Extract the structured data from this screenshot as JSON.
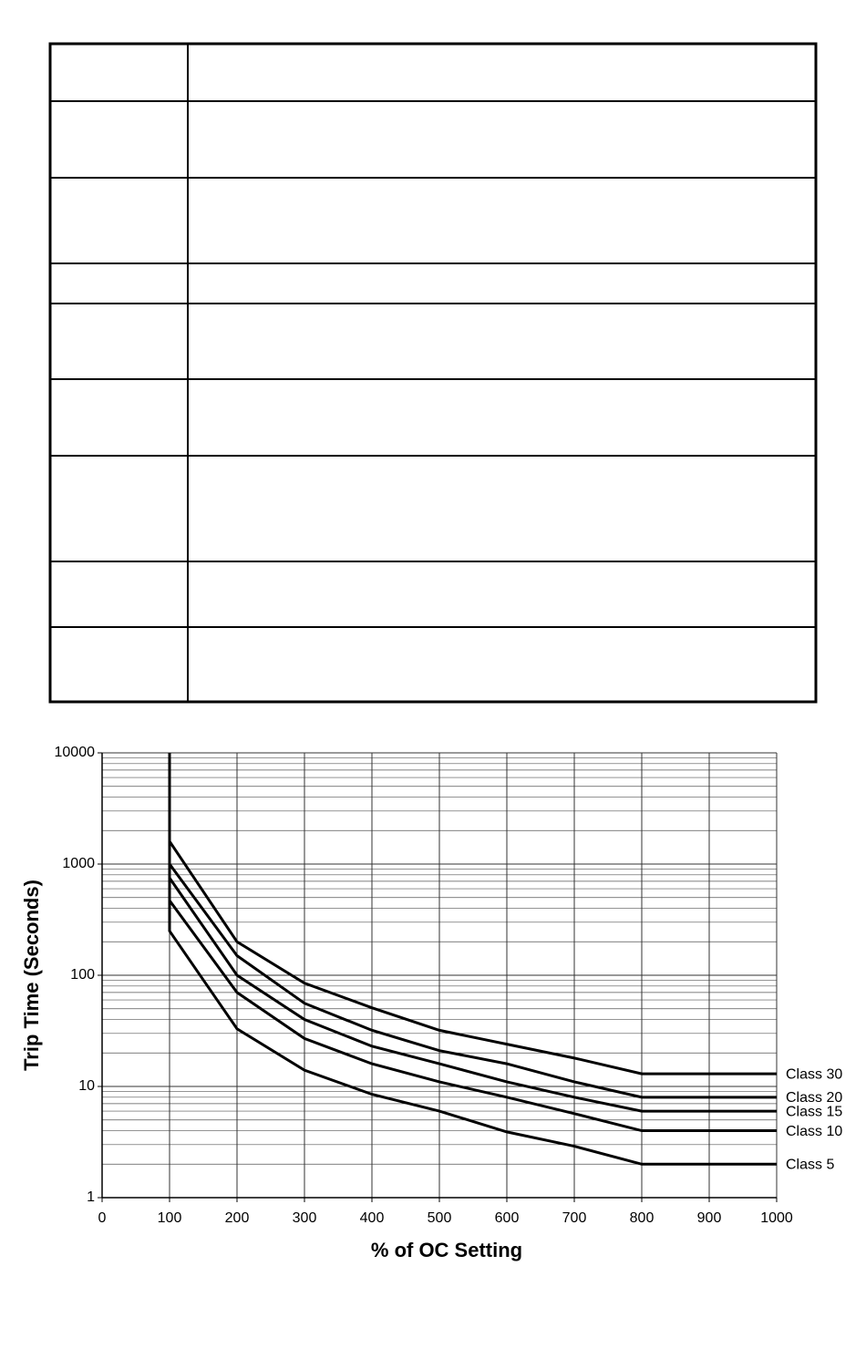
{
  "chart_data": {
    "type": "line",
    "x_label": "% of OC Setting",
    "y_label": "Trip Time (Seconds)",
    "x": [
      100,
      100,
      200,
      300,
      400,
      500,
      600,
      700,
      800,
      1000
    ],
    "series": [
      {
        "name": "Class 30",
        "color": "#000000",
        "values": [
          10000,
          1600,
          200,
          85,
          51,
          32,
          24,
          18,
          13,
          13
        ]
      },
      {
        "name": "Class 20",
        "color": "#000000",
        "values": [
          10000,
          1000,
          150,
          56,
          32,
          21,
          16,
          11,
          8,
          8
        ]
      },
      {
        "name": "Class 15",
        "color": "#000000",
        "values": [
          10000,
          750,
          100,
          40,
          23,
          16,
          11,
          8,
          6,
          6
        ]
      },
      {
        "name": "Class 10",
        "color": "#000000",
        "values": [
          10000,
          470,
          70,
          27,
          16,
          11,
          8,
          5.7,
          4,
          4
        ]
      },
      {
        "name": "Class 5",
        "color": "#000000",
        "values": [
          10000,
          250,
          33,
          14,
          8.5,
          6,
          3.9,
          2.9,
          2,
          2
        ]
      }
    ],
    "xlim": [
      0,
      1000
    ],
    "xticks": [
      0,
      100,
      200,
      300,
      400,
      500,
      600,
      700,
      800,
      900,
      1000
    ],
    "ylim": [
      1,
      10000
    ],
    "yticks": [
      1,
      10,
      100,
      1000,
      10000
    ],
    "y_scale": "log",
    "grid": true
  }
}
